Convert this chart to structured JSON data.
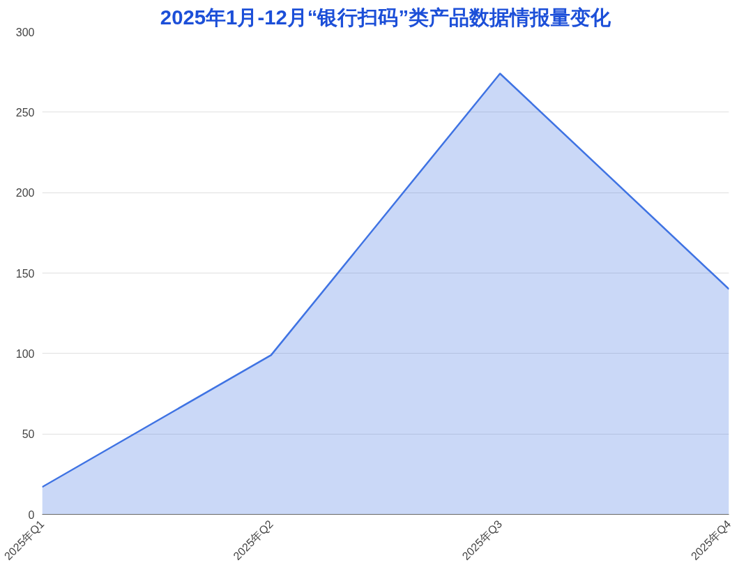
{
  "chart_data": {
    "type": "area",
    "title": "2025年1月-12月“银行扫码”类产品数据情报量变化",
    "categories": [
      "2025年Q1",
      "2025年Q2",
      "2025年Q3",
      "2025年Q4"
    ],
    "series": [
      {
        "color": "#3f73e3",
        "values": [
          17,
          99,
          274,
          140
        ]
      }
    ],
    "ylim": [
      0,
      300
    ],
    "yticks": [
      0,
      50,
      100,
      150,
      200,
      250,
      300
    ],
    "grid": "y",
    "marker": "none",
    "line_style": "solid"
  }
}
